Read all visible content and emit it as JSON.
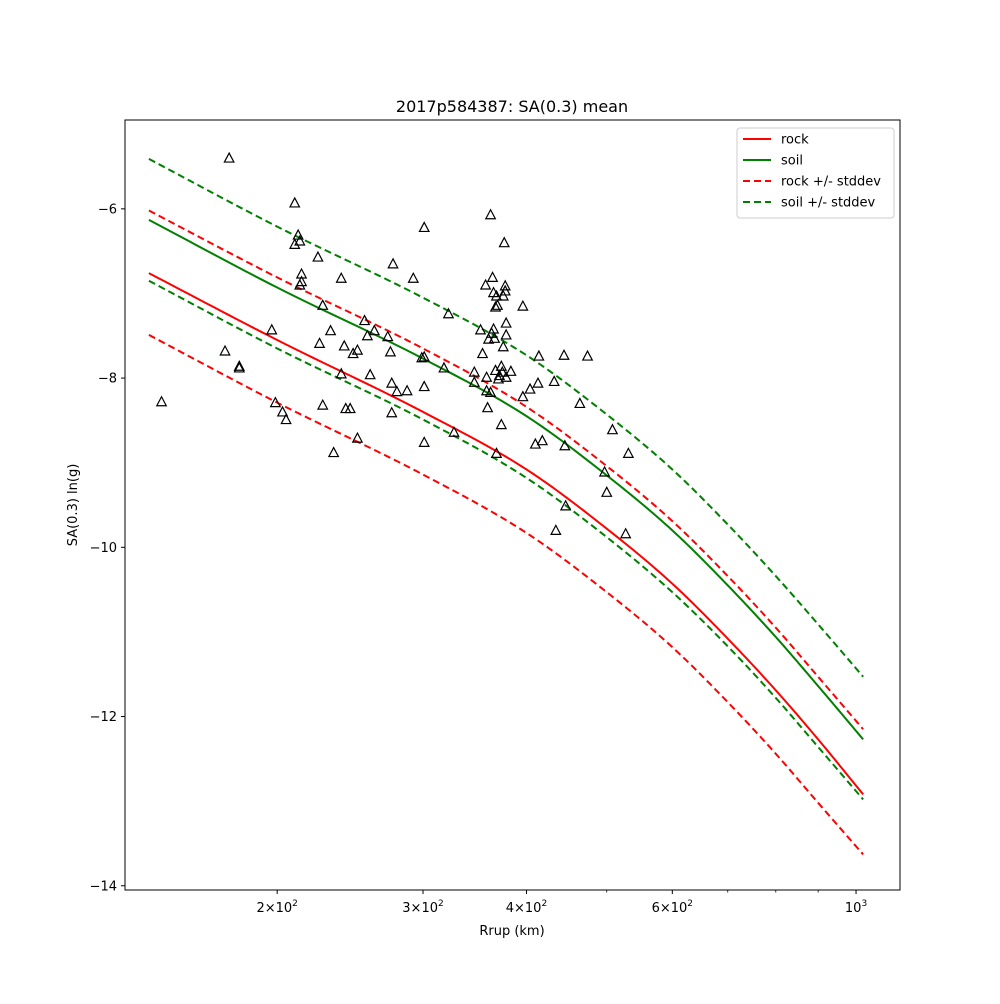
{
  "chart_data": {
    "type": "scatter",
    "title": "2017p584387: SA(0.3) mean",
    "xlabel": "Rrup (km)",
    "ylabel": "SA(0.3) ln(g)",
    "xscale": "log",
    "xlim": [
      131,
      1130
    ],
    "ylim": [
      -14.05,
      -4.95
    ],
    "xticks": [
      {
        "value": 200,
        "base": "2",
        "exp": "2"
      },
      {
        "value": 300,
        "base": "3",
        "exp": "2"
      },
      {
        "value": 400,
        "base": "4",
        "exp": "2"
      },
      {
        "value": 600,
        "base": "6",
        "exp": "2"
      },
      {
        "value": 1000,
        "base": "10",
        "exp": "3"
      }
    ],
    "xminor": [
      500,
      700,
      800,
      900
    ],
    "yticks": [
      {
        "value": -14,
        "label": "−14"
      },
      {
        "value": -12,
        "label": "−12"
      },
      {
        "value": -10,
        "label": "−10"
      },
      {
        "value": -8,
        "label": "−8"
      },
      {
        "value": -6,
        "label": "−6"
      }
    ],
    "legend_position": "upper right",
    "grid": false,
    "series": [
      {
        "name": "rock",
        "color": "#ff0000",
        "dash": "solid",
        "x": [
          140,
          200,
          300,
          400,
          500,
          600,
          700,
          800,
          900,
          1020
        ],
        "y": [
          -6.76,
          -7.55,
          -8.4,
          -9.08,
          -9.78,
          -10.43,
          -11.08,
          -11.69,
          -12.27,
          -12.92
        ]
      },
      {
        "name": "soil",
        "color": "#008000",
        "dash": "solid",
        "x": [
          140,
          200,
          300,
          400,
          500,
          600,
          700,
          800,
          900,
          1020
        ],
        "y": [
          -6.13,
          -6.93,
          -7.77,
          -8.45,
          -9.15,
          -9.8,
          -10.45,
          -11.06,
          -11.64,
          -12.27
        ]
      },
      {
        "name": "rock +/- stddev",
        "color": "#ff0000",
        "dash": "dashed",
        "upper": {
          "x": [
            140,
            200,
            300,
            400,
            500,
            600,
            700,
            800,
            900,
            1020
          ],
          "y": [
            -6.02,
            -6.81,
            -7.65,
            -8.34,
            -9.04,
            -9.69,
            -10.34,
            -10.95,
            -11.53,
            -12.15
          ]
        },
        "lower": {
          "x": [
            140,
            200,
            300,
            400,
            500,
            600,
            700,
            800,
            900,
            1020
          ],
          "y": [
            -7.49,
            -8.29,
            -9.14,
            -9.83,
            -10.53,
            -11.18,
            -11.83,
            -12.44,
            -13.02,
            -13.63
          ]
        }
      },
      {
        "name": "soil +/- stddev",
        "color": "#008000",
        "dash": "dashed",
        "upper": {
          "x": [
            140,
            200,
            300,
            400,
            500,
            600,
            700,
            800,
            900,
            1020
          ],
          "y": [
            -5.41,
            -6.21,
            -7.05,
            -7.73,
            -8.43,
            -9.08,
            -9.73,
            -10.34,
            -10.91,
            -11.53
          ]
        },
        "lower": {
          "x": [
            140,
            200,
            300,
            400,
            500,
            600,
            700,
            800,
            900,
            1020
          ],
          "y": [
            -6.85,
            -7.65,
            -8.49,
            -9.18,
            -9.88,
            -10.53,
            -11.17,
            -11.78,
            -12.36,
            -12.98
          ]
        }
      }
    ],
    "observations": {
      "marker": "triangle",
      "color": "#000000",
      "points": [
        [
          145,
          -8.28
        ],
        [
          175,
          -5.4
        ],
        [
          173,
          -7.68
        ],
        [
          180,
          -7.86
        ],
        [
          180,
          -7.88
        ],
        [
          197,
          -7.43
        ],
        [
          199,
          -8.29
        ],
        [
          203,
          -8.4
        ],
        [
          205,
          -8.49
        ],
        [
          210,
          -5.93
        ],
        [
          212,
          -6.31
        ],
        [
          213,
          -6.38
        ],
        [
          210,
          -6.42
        ],
        [
          214,
          -6.77
        ],
        [
          214,
          -6.86
        ],
        [
          213,
          -6.9
        ],
        [
          224,
          -6.57
        ],
        [
          227,
          -7.14
        ],
        [
          225,
          -7.59
        ],
        [
          227,
          -8.32
        ],
        [
          232,
          -7.44
        ],
        [
          234,
          -8.88
        ],
        [
          239,
          -6.82
        ],
        [
          239,
          -7.95
        ],
        [
          241,
          -7.62
        ],
        [
          242,
          -8.36
        ],
        [
          245,
          -8.36
        ],
        [
          247,
          -7.71
        ],
        [
          250,
          -7.67
        ],
        [
          250,
          -8.71
        ],
        [
          255,
          -7.32
        ],
        [
          257,
          -7.5
        ],
        [
          259,
          -7.96
        ],
        [
          262,
          -7.44
        ],
        [
          272,
          -7.51
        ],
        [
          274,
          -7.69
        ],
        [
          275,
          -8.06
        ],
        [
          275,
          -8.41
        ],
        [
          276,
          -6.65
        ],
        [
          279,
          -8.16
        ],
        [
          287,
          -8.15
        ],
        [
          292,
          -6.82
        ],
        [
          299,
          -7.76
        ],
        [
          301,
          -7.75
        ],
        [
          301,
          -6.22
        ],
        [
          301,
          -8.1
        ],
        [
          301,
          -8.76
        ],
        [
          318,
          -7.88
        ],
        [
          322,
          -7.24
        ],
        [
          327,
          -8.64
        ],
        [
          346,
          -7.93
        ],
        [
          346,
          -8.05
        ],
        [
          352,
          -7.43
        ],
        [
          354,
          -7.71
        ],
        [
          357,
          -6.9
        ],
        [
          358,
          -7.99
        ],
        [
          358,
          -8.15
        ],
        [
          359,
          -8.35
        ],
        [
          360,
          -7.54
        ],
        [
          362,
          -6.07
        ],
        [
          362,
          -8.17
        ],
        [
          363,
          -7.47
        ],
        [
          364,
          -6.81
        ],
        [
          365,
          -6.99
        ],
        [
          365,
          -7.42
        ],
        [
          366,
          -7.53
        ],
        [
          367,
          -7.16
        ],
        [
          367,
          -7.91
        ],
        [
          368,
          -7.03
        ],
        [
          368,
          -8.89
        ],
        [
          369,
          -7.14
        ],
        [
          370,
          -8.01
        ],
        [
          371,
          -7.97
        ],
        [
          373,
          -7.86
        ],
        [
          373,
          -8.55
        ],
        [
          374,
          -7.93
        ],
        [
          375,
          -7.03
        ],
        [
          375,
          -7.63
        ],
        [
          376,
          -6.4
        ],
        [
          377,
          -6.91
        ],
        [
          377,
          -6.97
        ],
        [
          378,
          -7.49
        ],
        [
          378,
          -7.35
        ],
        [
          378,
          -7.99
        ],
        [
          383,
          -7.92
        ],
        [
          396,
          -7.15
        ],
        [
          396,
          -8.22
        ],
        [
          404,
          -8.13
        ],
        [
          410,
          -8.78
        ],
        [
          413,
          -8.06
        ],
        [
          414,
          -7.74
        ],
        [
          418,
          -8.74
        ],
        [
          432,
          -8.04
        ],
        [
          434,
          -9.8
        ],
        [
          444,
          -7.73
        ],
        [
          445,
          -8.8
        ],
        [
          446,
          -9.51
        ],
        [
          464,
          -8.3
        ],
        [
          474,
          -7.74
        ],
        [
          497,
          -9.11
        ],
        [
          500,
          -9.35
        ],
        [
          508,
          -8.61
        ],
        [
          527,
          -9.84
        ],
        [
          531,
          -8.89
        ]
      ]
    }
  }
}
